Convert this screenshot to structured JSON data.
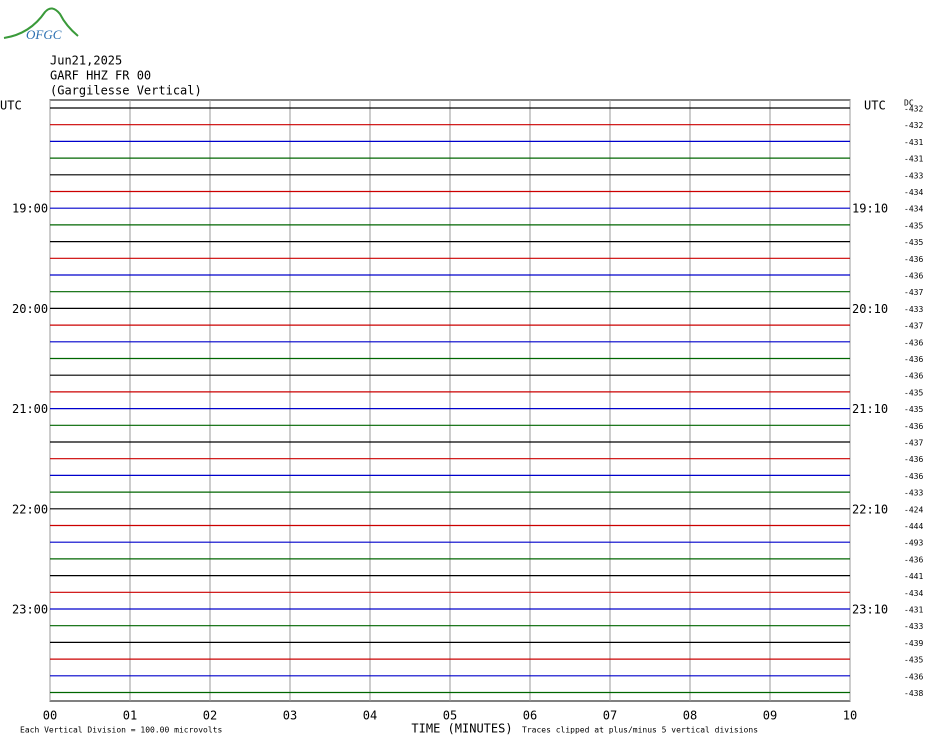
{
  "logo": "OFGC",
  "chart_data": {
    "type": "helicorder",
    "title": [
      "Jun21,2025",
      "GARF HHZ FR 00",
      "(Gargilesse Vertical)"
    ],
    "left_axis_label": "UTC",
    "right_axis_label": "UTC",
    "dc_label": "DC",
    "xlabel": "TIME (MINUTES)",
    "footnote_left": "Each Vertical Division =  100.00 microvolts",
    "footnote_right": "Traces clipped at plus/minus 5 vertical divisions",
    "xlim": [
      0,
      10
    ],
    "xticks": [
      {
        "value": 0,
        "label": "00"
      },
      {
        "value": 1,
        "label": "01"
      },
      {
        "value": 2,
        "label": "02"
      },
      {
        "value": 3,
        "label": "03"
      },
      {
        "value": 4,
        "label": "04"
      },
      {
        "value": 5,
        "label": "05"
      },
      {
        "value": 6,
        "label": "06"
      },
      {
        "value": 7,
        "label": "07"
      },
      {
        "value": 8,
        "label": "08"
      },
      {
        "value": 9,
        "label": "09"
      },
      10
    ],
    "grid": true,
    "colors": [
      "#000000",
      "#cc0000",
      "#0000cc",
      "#006600"
    ],
    "rows": [
      {
        "dc": -432
      },
      {
        "dc": -432
      },
      {
        "dc": -431
      },
      {
        "dc": -431
      },
      {
        "dc": -433
      },
      {
        "dc": -434
      },
      {
        "dc": -434,
        "left": "19:00",
        "right": "19:10"
      },
      {
        "dc": -435
      },
      {
        "dc": -435
      },
      {
        "dc": -436
      },
      {
        "dc": -436
      },
      {
        "dc": -437
      },
      {
        "dc": -433,
        "left": "20:00",
        "right": "20:10"
      },
      {
        "dc": -437
      },
      {
        "dc": -436
      },
      {
        "dc": -436
      },
      {
        "dc": -436
      },
      {
        "dc": -435
      },
      {
        "dc": -435,
        "left": "21:00",
        "right": "21:10"
      },
      {
        "dc": -436
      },
      {
        "dc": -437
      },
      {
        "dc": -436
      },
      {
        "dc": -436
      },
      {
        "dc": -433
      },
      {
        "dc": -424,
        "left": "22:00",
        "right": "22:10"
      },
      {
        "dc": -444
      },
      {
        "dc": -493
      },
      {
        "dc": -436
      },
      {
        "dc": -441
      },
      {
        "dc": -434
      },
      {
        "dc": -431,
        "left": "23:00",
        "right": "23:10"
      },
      {
        "dc": -433
      },
      {
        "dc": -439
      },
      {
        "dc": -435
      },
      {
        "dc": -436
      },
      {
        "dc": -438
      }
    ]
  }
}
